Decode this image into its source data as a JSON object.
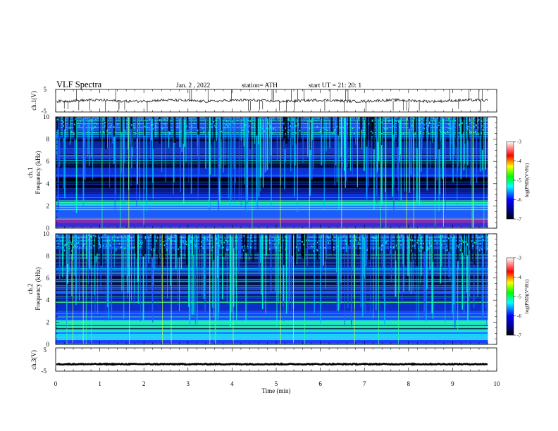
{
  "header": {
    "title": "VLF  Spectra",
    "date": "Jan. 2  , 2022",
    "station": "station= ATH",
    "start_ut": "start  UT  =    21: 20: 1"
  },
  "colors": {
    "background": "#ffffff",
    "axis": "#000000",
    "spectrogram_low": "#00003a",
    "spectrogram_mid": "#1e4cff",
    "spectrogram_high": "#00e8ff"
  },
  "chart_data": [
    {
      "type": "line",
      "name": "ch1-waveform",
      "ylabel": "ch.1(V)",
      "ylim": [
        -5,
        5
      ],
      "yticks": [
        "5",
        "-5"
      ],
      "xlim": [
        0,
        10
      ],
      "baseline": 0
    },
    {
      "type": "heatmap",
      "name": "ch1-spectrogram",
      "ylabel": "ch.1\nFrequency (kHz)",
      "ylabel_lines": [
        "ch.1",
        "Frequency (kHz)"
      ],
      "ylim": [
        0,
        10
      ],
      "yticks": [
        "0",
        "2",
        "4",
        "6",
        "8",
        "10"
      ],
      "xlim": [
        0,
        10
      ],
      "data_end_min": 9.8,
      "colorbar": {
        "label": "log(PSD)(V²/Hz)",
        "range": [
          -7,
          -3
        ],
        "ticks": [
          "-3",
          "-4",
          "-5",
          "-6",
          "-7"
        ],
        "colors": [
          "#000000",
          "#0000ff",
          "#00ffff",
          "#00ff00",
          "#ffff00",
          "#ff0000",
          "#ffffff"
        ]
      }
    },
    {
      "type": "heatmap",
      "name": "ch2-spectrogram",
      "ylabel": "ch.2\nFrequency (kHz)",
      "ylabel_lines": [
        "ch.2",
        "Frequency (kHz)"
      ],
      "ylim": [
        0,
        10
      ],
      "yticks": [
        "0",
        "2",
        "4",
        "6",
        "8",
        "10"
      ],
      "xlim": [
        0,
        10
      ],
      "data_end_min": 9.8,
      "colorbar": {
        "label": "log(PSD)(V²/Hz)",
        "range": [
          -7,
          -3
        ],
        "ticks": [
          "-3",
          "-4",
          "-5",
          "-6",
          "-7"
        ],
        "colors": [
          "#000000",
          "#0000ff",
          "#00ffff",
          "#00ff00",
          "#ffff00",
          "#ff0000",
          "#ffffff"
        ]
      }
    },
    {
      "type": "line",
      "name": "ch3-waveform",
      "ylabel": "ch.3(V)",
      "ylim": [
        -5,
        5
      ],
      "yticks": [
        "5",
        "-5"
      ],
      "xlim": [
        0,
        10
      ],
      "baseline": -2,
      "xlabel": "Time  (min)",
      "xticks": [
        "0",
        "1",
        "2",
        "3",
        "4",
        "5",
        "6",
        "7",
        "8",
        "9",
        "10"
      ]
    }
  ]
}
